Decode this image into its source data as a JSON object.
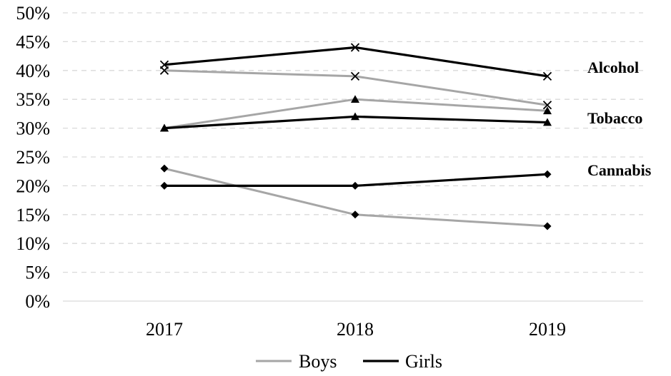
{
  "chart_data": {
    "type": "line",
    "categories": [
      "2017",
      "2018",
      "2019"
    ],
    "ylim": [
      0,
      50
    ],
    "yticks": [
      "0%",
      "5%",
      "10%",
      "15%",
      "20%",
      "25%",
      "30%",
      "35%",
      "40%",
      "45%",
      "50%"
    ],
    "grid": true,
    "legend_placement": "bottom",
    "legend": [
      {
        "name": "Boys",
        "color": "#a6a6a6"
      },
      {
        "name": "Girls",
        "color": "#000000"
      }
    ],
    "annotations": [
      "Alcohol",
      "Tobacco",
      "Cannabis"
    ],
    "series": [
      {
        "group": "Alcohol",
        "legend": "Boys",
        "color": "#a6a6a6",
        "marker": "x",
        "values": [
          40,
          39,
          34
        ]
      },
      {
        "group": "Alcohol",
        "legend": "Girls",
        "color": "#000000",
        "marker": "x",
        "values": [
          41,
          44,
          39
        ]
      },
      {
        "group": "Tobacco",
        "legend": "Boys",
        "color": "#a6a6a6",
        "marker": "triangle",
        "values": [
          30,
          35,
          33
        ]
      },
      {
        "group": "Tobacco",
        "legend": "Girls",
        "color": "#000000",
        "marker": "triangle",
        "values": [
          30,
          32,
          31
        ]
      },
      {
        "group": "Cannabis",
        "legend": "Boys",
        "color": "#a6a6a6",
        "marker": "diamond",
        "values": [
          23,
          15,
          13
        ]
      },
      {
        "group": "Cannabis",
        "legend": "Girls",
        "color": "#000000",
        "marker": "diamond",
        "values": [
          20,
          20,
          22
        ]
      }
    ]
  }
}
